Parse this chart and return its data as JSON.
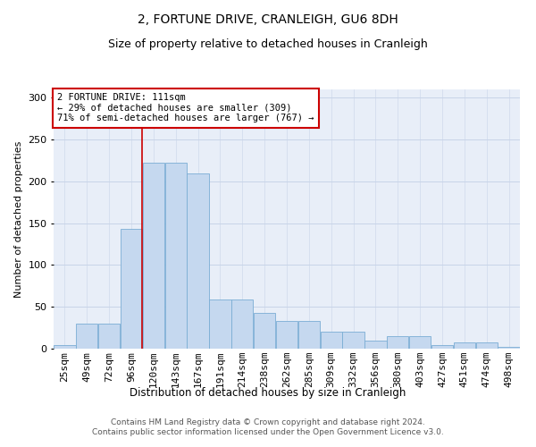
{
  "title": "2, FORTUNE DRIVE, CRANLEIGH, GU6 8DH",
  "subtitle": "Size of property relative to detached houses in Cranleigh",
  "xlabel": "Distribution of detached houses by size in Cranleigh",
  "ylabel": "Number of detached properties",
  "footer_line1": "Contains HM Land Registry data © Crown copyright and database right 2024.",
  "footer_line2": "Contains public sector information licensed under the Open Government Licence v3.0.",
  "annotation_line1": "2 FORTUNE DRIVE: 111sqm",
  "annotation_line2": "← 29% of detached houses are smaller (309)",
  "annotation_line3": "71% of semi-detached houses are larger (767) →",
  "bar_labels": [
    "25sqm",
    "49sqm",
    "72sqm",
    "96sqm",
    "120sqm",
    "143sqm",
    "167sqm",
    "191sqm",
    "214sqm",
    "238sqm",
    "262sqm",
    "285sqm",
    "309sqm",
    "332sqm",
    "356sqm",
    "380sqm",
    "403sqm",
    "427sqm",
    "451sqm",
    "474sqm",
    "498sqm"
  ],
  "bar_values": [
    4,
    30,
    30,
    143,
    222,
    222,
    210,
    59,
    59,
    43,
    33,
    33,
    20,
    20,
    10,
    15,
    15,
    4,
    8,
    8,
    2
  ],
  "bar_color": "#c5d8ef",
  "bar_edge_color": "#7aadd4",
  "grid_color": "#c8d4e8",
  "bg_color": "#e8eef8",
  "ref_line_color": "#cc0000",
  "annotation_box_edge": "#cc0000",
  "ylim": [
    0,
    310
  ],
  "yticks": [
    0,
    50,
    100,
    150,
    200,
    250,
    300
  ],
  "title_fontsize": 10,
  "subtitle_fontsize": 9,
  "ylabel_fontsize": 8,
  "xlabel_fontsize": 8.5,
  "tick_fontsize": 8,
  "annotation_fontsize": 7.5,
  "footer_fontsize": 6.5
}
